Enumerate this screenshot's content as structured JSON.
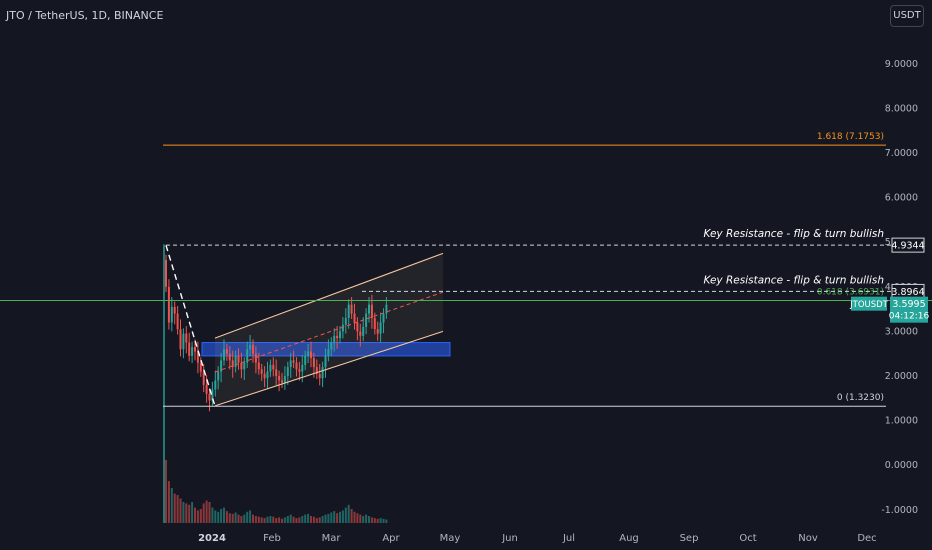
{
  "header": {
    "symbol_line": "JTO / TetherUS, 1D, BINANCE",
    "currency_button": "USDT"
  },
  "price_axis": {
    "ticks": [
      "9.0000",
      "8.0000",
      "7.0000",
      "6.0000",
      "5.0000",
      "4.0000",
      "3.0000",
      "2.0000",
      "1.0000",
      "0.0000",
      "-1.0000"
    ]
  },
  "time_axis": {
    "ticks": [
      "2024",
      "Feb",
      "Mar",
      "Apr",
      "May",
      "Jun",
      "Jul",
      "Aug",
      "Sep",
      "Oct",
      "Nov",
      "Dec"
    ]
  },
  "labels": {
    "fib_1618": "1.618 (7.1753)",
    "fib_0618": "0.618 (3.6931)",
    "fib_0": "0 (1.3230)",
    "key_resistance_upper": "Key Resistance - flip & turn bullish",
    "key_resistance_lower": "Key Resistance - flip & turn bullish",
    "price_tag_upper": "4.9344",
    "price_tag_lower": "3.8964",
    "ticker_tag": "JTOUSDT",
    "last_price": "3.5995",
    "countdown": "04:12:16"
  },
  "colors": {
    "background": "#141722",
    "up": "#26a69a",
    "down": "#ef5350",
    "fib_1618": "#f7931a",
    "fib_0618": "#4caf50",
    "fib_0": "#d1d4dc",
    "zone": "#2962ff",
    "channel": "#f5c59f",
    "price_tag": "#26a69a"
  },
  "chart_data": {
    "type": "candlestick",
    "symbol": "JTO / TetherUS",
    "interval": "1D",
    "exchange": "BINANCE",
    "ylim": [
      -1.2,
      9.9
    ],
    "last_price": 3.5995,
    "fib_levels": [
      {
        "ratio": 1.618,
        "price": 7.1753
      },
      {
        "ratio": 0.618,
        "price": 3.6931
      },
      {
        "ratio": 0,
        "price": 1.323
      }
    ],
    "resistance_levels": [
      4.9344,
      3.8964
    ],
    "demand_zone": [
      2.45,
      2.75
    ],
    "closes": [
      4.0,
      3.2,
      3.55,
      3.4,
      3.05,
      2.6,
      2.95,
      2.75,
      2.45,
      2.65,
      2.55,
      2.3,
      2.1,
      1.8,
      1.6,
      1.45,
      1.7,
      1.9,
      2.1,
      2.35,
      2.6,
      2.5,
      2.35,
      2.2,
      2.45,
      2.3,
      2.15,
      2.3,
      2.6,
      2.7,
      2.5,
      2.3,
      2.15,
      2.05,
      1.95,
      2.1,
      2.25,
      2.15,
      2.0,
      1.9,
      1.85,
      2.0,
      2.2,
      2.35,
      2.3,
      2.15,
      2.1,
      2.25,
      2.45,
      2.55,
      2.4,
      2.2,
      2.05,
      1.95,
      2.2,
      2.45,
      2.6,
      2.75,
      2.9,
      2.85,
      3.0,
      3.15,
      3.3,
      3.6,
      3.4,
      3.2,
      3.0,
      2.9,
      3.1,
      3.4,
      3.6,
      3.3,
      3.05,
      2.95,
      3.2,
      3.4,
      3.6
    ],
    "volumes": [
      0.9,
      0.6,
      0.5,
      0.42,
      0.4,
      0.35,
      0.3,
      0.28,
      0.26,
      0.3,
      0.22,
      0.18,
      0.2,
      0.28,
      0.32,
      0.3,
      0.22,
      0.18,
      0.16,
      0.2,
      0.22,
      0.17,
      0.14,
      0.13,
      0.15,
      0.12,
      0.1,
      0.12,
      0.16,
      0.18,
      0.12,
      0.1,
      0.09,
      0.08,
      0.07,
      0.09,
      0.1,
      0.09,
      0.07,
      0.08,
      0.06,
      0.08,
      0.1,
      0.12,
      0.09,
      0.07,
      0.08,
      0.1,
      0.12,
      0.13,
      0.1,
      0.09,
      0.07,
      0.08,
      0.1,
      0.12,
      0.13,
      0.15,
      0.17,
      0.14,
      0.16,
      0.18,
      0.22,
      0.26,
      0.2,
      0.16,
      0.14,
      0.12,
      0.1,
      0.12,
      0.1,
      0.08,
      0.07,
      0.06,
      0.07,
      0.06,
      0.05
    ]
  }
}
